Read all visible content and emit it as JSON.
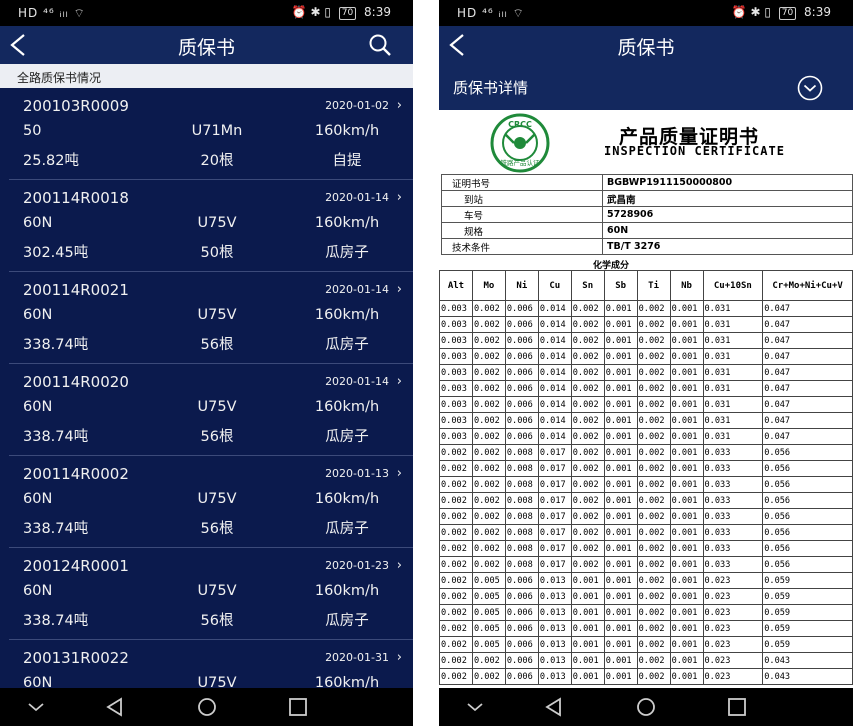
{
  "status": {
    "left": "HD ⁴⁶ ᵢₗₗ ⌔",
    "right_icons": "⏰ ✱ ▯",
    "battery": "70",
    "time": "8:39"
  },
  "left_screen": {
    "title": "质保书",
    "subheader": "全路质保书情况",
    "items": [
      {
        "code": "200103R0009",
        "date": "2020-01-02",
        "spec": "50",
        "steel": "U71Mn",
        "speed": "160km/h",
        "weight": "25.82吨",
        "count": "20根",
        "method": "自提"
      },
      {
        "code": "200114R0018",
        "date": "2020-01-14",
        "spec": "60N",
        "steel": "U75V",
        "speed": "160km/h",
        "weight": "302.45吨",
        "count": "50根",
        "method": "瓜房子"
      },
      {
        "code": "200114R0021",
        "date": "2020-01-14",
        "spec": "60N",
        "steel": "U75V",
        "speed": "160km/h",
        "weight": "338.74吨",
        "count": "56根",
        "method": "瓜房子"
      },
      {
        "code": "200114R0020",
        "date": "2020-01-14",
        "spec": "60N",
        "steel": "U75V",
        "speed": "160km/h",
        "weight": "338.74吨",
        "count": "56根",
        "method": "瓜房子"
      },
      {
        "code": "200114R0002",
        "date": "2020-01-13",
        "spec": "60N",
        "steel": "U75V",
        "speed": "160km/h",
        "weight": "338.74吨",
        "count": "56根",
        "method": "瓜房子"
      },
      {
        "code": "200124R0001",
        "date": "2020-01-23",
        "spec": "60N",
        "steel": "U75V",
        "speed": "160km/h",
        "weight": "338.74吨",
        "count": "56根",
        "method": "瓜房子"
      },
      {
        "code": "200131R0022",
        "date": "2020-01-31",
        "spec": "60N",
        "steel": "U75V",
        "speed": "160km/h",
        "weight": "",
        "count": "",
        "method": ""
      }
    ]
  },
  "right_screen": {
    "title": "质保书",
    "detail_label": "质保书详情",
    "cert": {
      "logo_text": "CRCC",
      "logo_sub": "铁路产品认证",
      "title_cn": "产品质量证明书",
      "title_en": "INSPECTION CERTIFICATE",
      "info": [
        {
          "key": "证明书号",
          "value": "BGBWP1911150000800"
        },
        {
          "key": "到站",
          "value": "武昌南"
        },
        {
          "key": "车号",
          "value": "5728906"
        },
        {
          "key": "规格",
          "value": "60N"
        },
        {
          "key": "技术条件",
          "value": "TB/T 3276"
        }
      ],
      "chem_title": "化学成分",
      "chem_headers": [
        "Alt",
        "Mo",
        "Ni",
        "Cu",
        "Sn",
        "Sb",
        "Ti",
        "Nb",
        "Cu+10Sn",
        "Cr+Mo+Ni+Cu+V"
      ],
      "chem_rows": [
        [
          "0.003",
          "0.002",
          "0.006",
          "0.014",
          "0.002",
          "0.001",
          "0.002",
          "0.001",
          "0.031",
          "0.047"
        ],
        [
          "0.003",
          "0.002",
          "0.006",
          "0.014",
          "0.002",
          "0.001",
          "0.002",
          "0.001",
          "0.031",
          "0.047"
        ],
        [
          "0.003",
          "0.002",
          "0.006",
          "0.014",
          "0.002",
          "0.001",
          "0.002",
          "0.001",
          "0.031",
          "0.047"
        ],
        [
          "0.003",
          "0.002",
          "0.006",
          "0.014",
          "0.002",
          "0.001",
          "0.002",
          "0.001",
          "0.031",
          "0.047"
        ],
        [
          "0.003",
          "0.002",
          "0.006",
          "0.014",
          "0.002",
          "0.001",
          "0.002",
          "0.001",
          "0.031",
          "0.047"
        ],
        [
          "0.003",
          "0.002",
          "0.006",
          "0.014",
          "0.002",
          "0.001",
          "0.002",
          "0.001",
          "0.031",
          "0.047"
        ],
        [
          "0.003",
          "0.002",
          "0.006",
          "0.014",
          "0.002",
          "0.001",
          "0.002",
          "0.001",
          "0.031",
          "0.047"
        ],
        [
          "0.003",
          "0.002",
          "0.006",
          "0.014",
          "0.002",
          "0.001",
          "0.002",
          "0.001",
          "0.031",
          "0.047"
        ],
        [
          "0.003",
          "0.002",
          "0.006",
          "0.014",
          "0.002",
          "0.001",
          "0.002",
          "0.001",
          "0.031",
          "0.047"
        ],
        [
          "0.002",
          "0.002",
          "0.008",
          "0.017",
          "0.002",
          "0.001",
          "0.002",
          "0.001",
          "0.033",
          "0.056"
        ],
        [
          "0.002",
          "0.002",
          "0.008",
          "0.017",
          "0.002",
          "0.001",
          "0.002",
          "0.001",
          "0.033",
          "0.056"
        ],
        [
          "0.002",
          "0.002",
          "0.008",
          "0.017",
          "0.002",
          "0.001",
          "0.002",
          "0.001",
          "0.033",
          "0.056"
        ],
        [
          "0.002",
          "0.002",
          "0.008",
          "0.017",
          "0.002",
          "0.001",
          "0.002",
          "0.001",
          "0.033",
          "0.056"
        ],
        [
          "0.002",
          "0.002",
          "0.008",
          "0.017",
          "0.002",
          "0.001",
          "0.002",
          "0.001",
          "0.033",
          "0.056"
        ],
        [
          "0.002",
          "0.002",
          "0.008",
          "0.017",
          "0.002",
          "0.001",
          "0.002",
          "0.001",
          "0.033",
          "0.056"
        ],
        [
          "0.002",
          "0.002",
          "0.008",
          "0.017",
          "0.002",
          "0.001",
          "0.002",
          "0.001",
          "0.033",
          "0.056"
        ],
        [
          "0.002",
          "0.002",
          "0.008",
          "0.017",
          "0.002",
          "0.001",
          "0.002",
          "0.001",
          "0.033",
          "0.056"
        ],
        [
          "0.002",
          "0.005",
          "0.006",
          "0.013",
          "0.001",
          "0.001",
          "0.002",
          "0.001",
          "0.023",
          "0.059"
        ],
        [
          "0.002",
          "0.005",
          "0.006",
          "0.013",
          "0.001",
          "0.001",
          "0.002",
          "0.001",
          "0.023",
          "0.059"
        ],
        [
          "0.002",
          "0.005",
          "0.006",
          "0.013",
          "0.001",
          "0.001",
          "0.002",
          "0.001",
          "0.023",
          "0.059"
        ],
        [
          "0.002",
          "0.005",
          "0.006",
          "0.013",
          "0.001",
          "0.001",
          "0.002",
          "0.001",
          "0.023",
          "0.059"
        ],
        [
          "0.002",
          "0.005",
          "0.006",
          "0.013",
          "0.001",
          "0.001",
          "0.002",
          "0.001",
          "0.023",
          "0.059"
        ],
        [
          "0.002",
          "0.002",
          "0.006",
          "0.013",
          "0.001",
          "0.001",
          "0.002",
          "0.001",
          "0.023",
          "0.043"
        ],
        [
          "0.002",
          "0.002",
          "0.006",
          "0.013",
          "0.001",
          "0.001",
          "0.002",
          "0.001",
          "0.023",
          "0.043"
        ]
      ]
    }
  },
  "colors": {
    "accent": "#13285e",
    "list_bg": "#0b1a4d",
    "logo_green": "#1f8a3a"
  },
  "icons": {
    "back": "back-arrow-icon",
    "search": "search-icon",
    "expand": "chevron-down-circle-icon",
    "nav": [
      "nav-down-icon",
      "nav-back-icon",
      "nav-home-icon",
      "nav-recent-icon"
    ]
  }
}
